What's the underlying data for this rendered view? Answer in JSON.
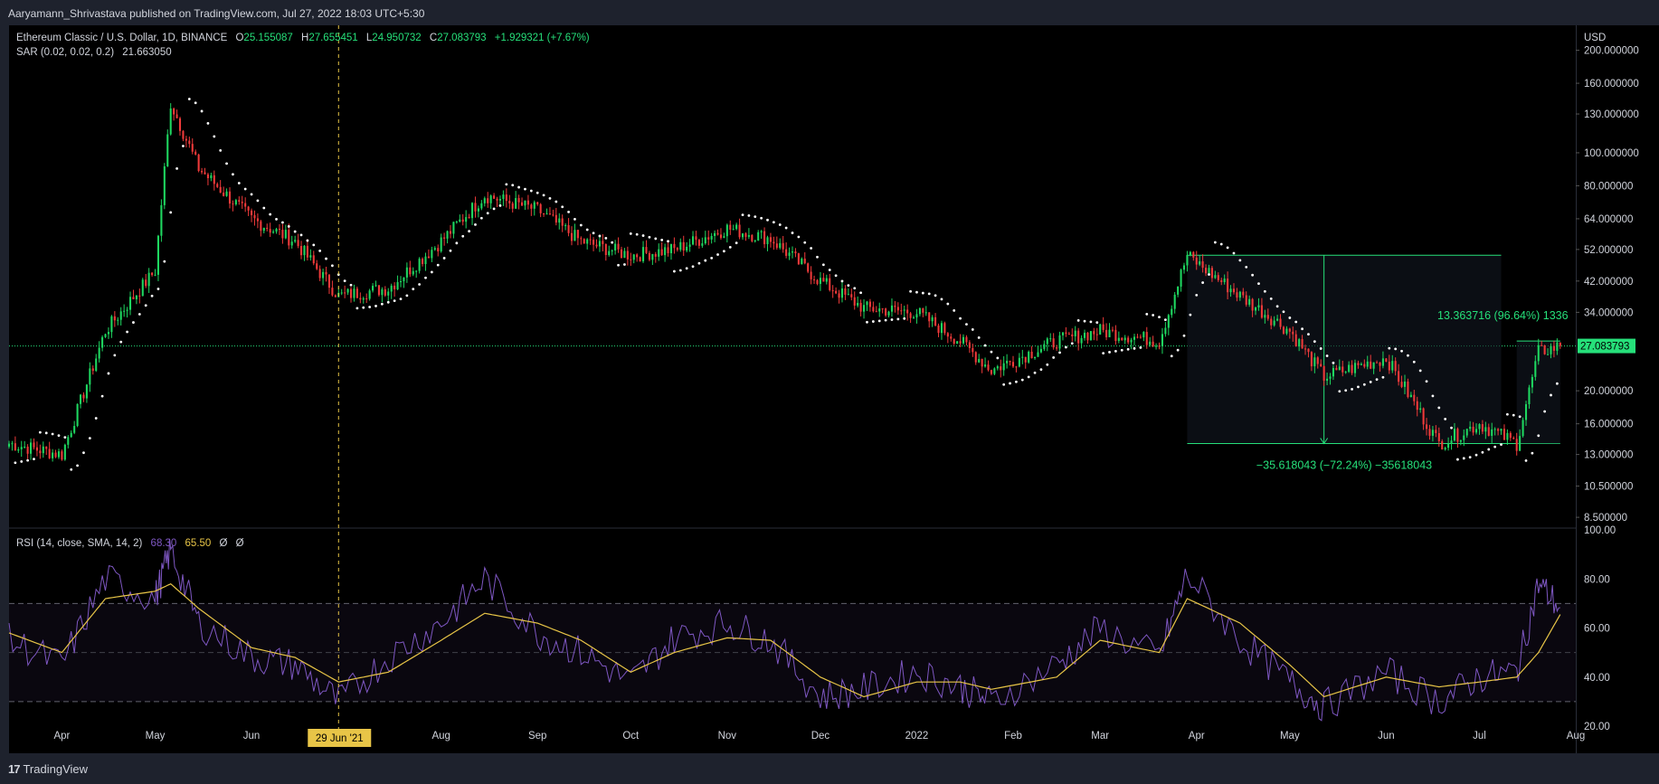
{
  "header": {
    "publisher_line": "Aaryamann_Shrivastava published on TradingView.com, Jul 27, 2022 18:03 UTC+5:30"
  },
  "footer": {
    "brand": "TradingView",
    "brand_mark": "17"
  },
  "legend": {
    "symbol": "Ethereum Classic / U.S. Dollar, 1D, BINANCE",
    "open_label": "O",
    "open": "25.155087",
    "high_label": "H",
    "high": "27.655451",
    "low_label": "L",
    "low": "24.950732",
    "close_label": "C",
    "close": "27.083793",
    "change": "+1.929321 (+7.67%)",
    "sar_label": "SAR (0.02, 0.02, 0.2)",
    "sar_value": "21.663050"
  },
  "rsi_legend": {
    "label": "RSI (14, close, SMA, 14, 2)",
    "rsi_value": "68.30",
    "ma_value": "65.50",
    "extra1": "Ø",
    "extra2": "Ø"
  },
  "price_axis": {
    "currency": "USD",
    "ticks": [
      "200.000000",
      "160.000000",
      "130.000000",
      "100.000000",
      "80.000000",
      "64.000000",
      "52.000000",
      "42.000000",
      "34.000000",
      "27.083793",
      "20.000000",
      "16.000000",
      "13.000000",
      "10.500000",
      "8.500000"
    ],
    "last_price": "27.083793"
  },
  "rsi_axis": {
    "ticks": [
      "100.00",
      "80.00",
      "60.00",
      "40.00",
      "20.00"
    ]
  },
  "time_axis": {
    "labels": [
      "Apr",
      "May",
      "Jun",
      "Jul",
      "Aug",
      "Sep",
      "Oct",
      "Nov",
      "Dec",
      "2022",
      "Feb",
      "Mar",
      "Apr",
      "May",
      "Jun",
      "Jul",
      "Aug"
    ],
    "crosshair_label": "29 Jun '21"
  },
  "annotations": {
    "drop": "−35.618043 (−72.24%) −35618043",
    "rise": "13.363716 (96.64%) 1336"
  },
  "colors": {
    "up": "#26a69a",
    "up_bright": "#1ed760",
    "down": "#ef3a3a",
    "sar": "#ffffff",
    "rsi": "#7e57c2",
    "rsi_ma": "#e8c547",
    "measure": "#26e07a",
    "crosshair": "#e8c547",
    "background": "#000000"
  },
  "chart_data": [
    {
      "type": "candlestick",
      "title": "Ethereum Classic / U.S. Dollar, 1D, BINANCE",
      "y_scale": "log",
      "ylim": [
        8,
        220
      ],
      "x_range": [
        "2021-03-15",
        "2022-08-01"
      ],
      "series": [
        {
          "name": "ETCUSD",
          "x": [
            "2021-03-15",
            "2021-04-01",
            "2021-04-15",
            "2021-05-01",
            "2021-05-06",
            "2021-05-15",
            "2021-06-01",
            "2021-06-15",
            "2021-06-29",
            "2021-07-15",
            "2021-08-01",
            "2021-08-15",
            "2021-09-01",
            "2021-09-15",
            "2021-10-01",
            "2021-10-15",
            "2021-11-01",
            "2021-11-15",
            "2021-12-01",
            "2021-12-15",
            "2022-01-01",
            "2022-01-15",
            "2022-01-25",
            "2022-02-15",
            "2022-03-01",
            "2022-03-20",
            "2022-03-29",
            "2022-04-15",
            "2022-05-01",
            "2022-05-12",
            "2022-06-01",
            "2022-06-18",
            "2022-07-01",
            "2022-07-13",
            "2022-07-20",
            "2022-07-27"
          ],
          "close": [
            14,
            13,
            30,
            45,
            140,
            90,
            64,
            55,
            38,
            40,
            55,
            75,
            68,
            55,
            50,
            52,
            60,
            56,
            42,
            35,
            34,
            28,
            23,
            28,
            30,
            28,
            50,
            38,
            30,
            22,
            25,
            14,
            16,
            14,
            26,
            27.08
          ]
        }
      ]
    },
    {
      "type": "line",
      "title": "RSI (14, close, SMA, 14, 2)",
      "ylim": [
        20,
        100
      ],
      "bands": [
        30,
        50,
        70
      ],
      "x": [
        "2021-03-15",
        "2021-04-01",
        "2021-04-15",
        "2021-05-01",
        "2021-05-06",
        "2021-05-15",
        "2021-06-01",
        "2021-06-15",
        "2021-06-29",
        "2021-07-15",
        "2021-08-01",
        "2021-08-15",
        "2021-09-01",
        "2021-09-15",
        "2021-10-01",
        "2021-10-15",
        "2021-11-01",
        "2021-11-15",
        "2021-12-01",
        "2021-12-15",
        "2022-01-01",
        "2022-01-15",
        "2022-01-25",
        "2022-02-15",
        "2022-03-01",
        "2022-03-20",
        "2022-03-29",
        "2022-04-15",
        "2022-05-01",
        "2022-05-12",
        "2022-06-01",
        "2022-06-18",
        "2022-07-01",
        "2022-07-13",
        "2022-07-20",
        "2022-07-27"
      ],
      "series": [
        {
          "name": "RSI",
          "values": [
            55,
            45,
            80,
            72,
            92,
            62,
            48,
            45,
            30,
            48,
            62,
            80,
            58,
            50,
            38,
            56,
            62,
            55,
            32,
            35,
            42,
            36,
            30,
            45,
            60,
            48,
            82,
            55,
            38,
            28,
            42,
            30,
            40,
            42,
            78,
            68.3
          ]
        },
        {
          "name": "RSI-based MA",
          "values": [
            58,
            50,
            72,
            75,
            78,
            68,
            52,
            48,
            38,
            42,
            55,
            66,
            62,
            55,
            42,
            50,
            56,
            55,
            40,
            32,
            38,
            38,
            35,
            40,
            55,
            50,
            72,
            62,
            45,
            32,
            40,
            36,
            38,
            40,
            50,
            65.5
          ]
        }
      ]
    }
  ]
}
